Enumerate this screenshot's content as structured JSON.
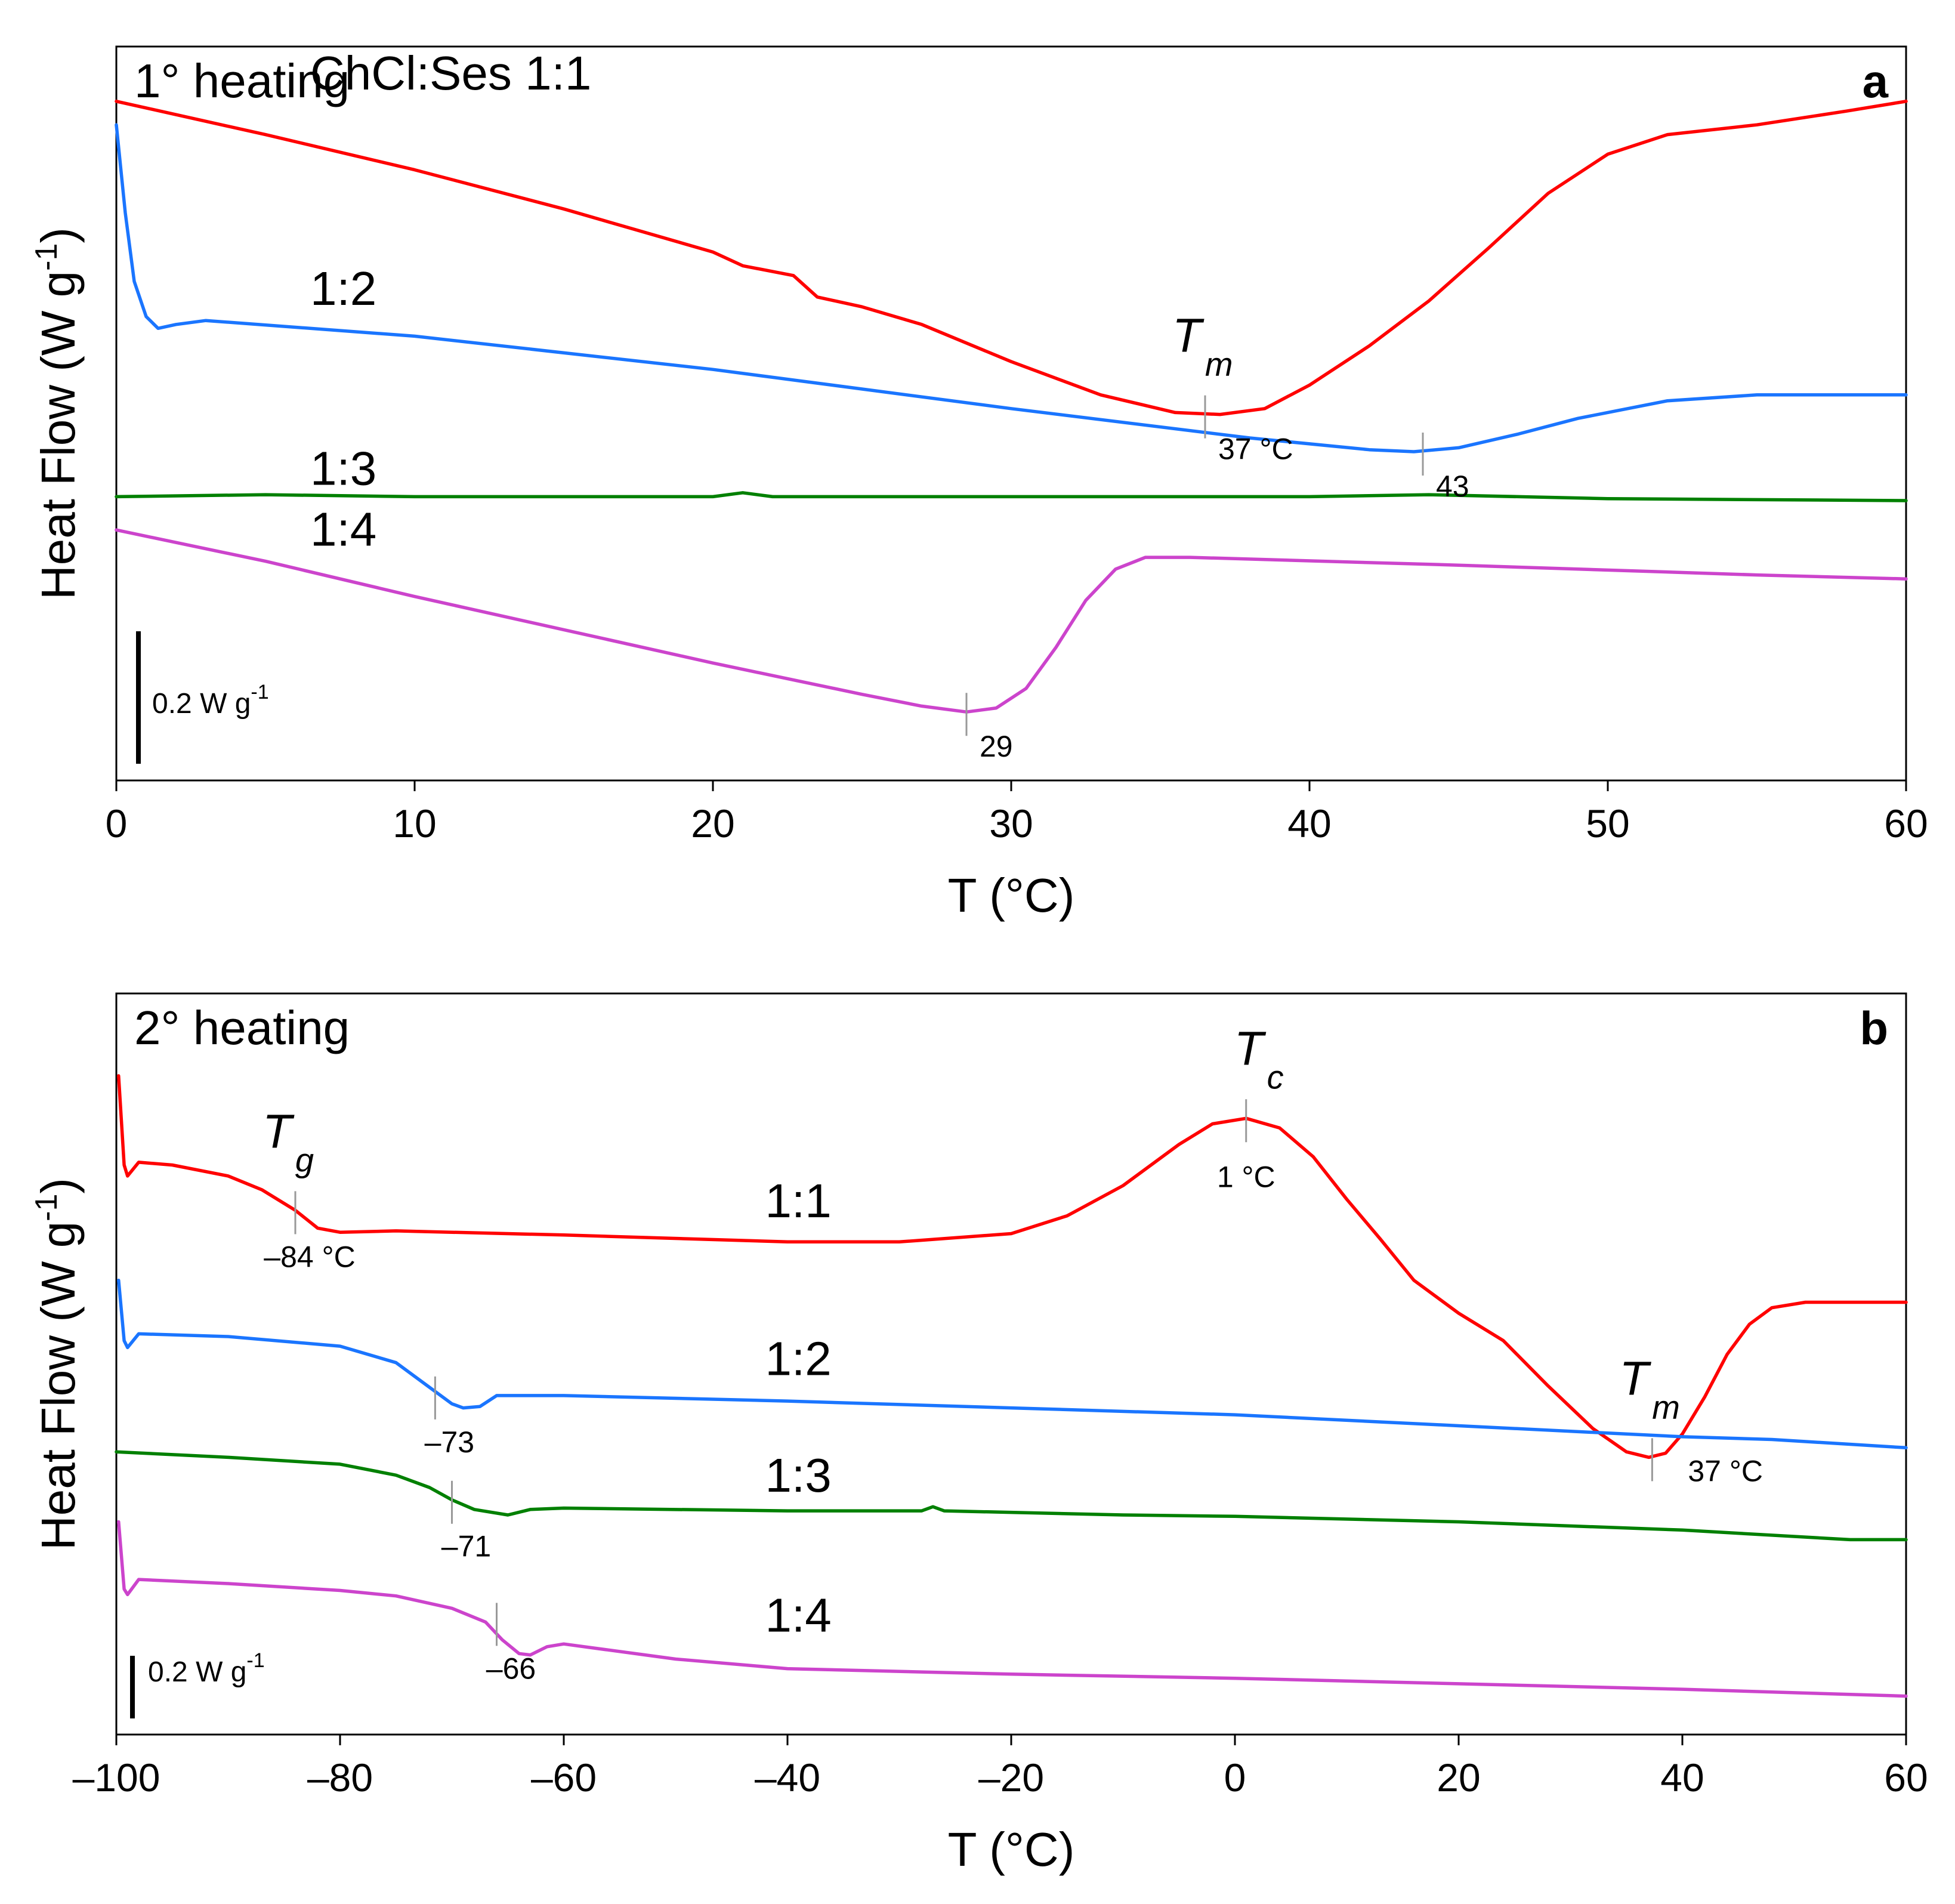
{
  "chart_data": [
    {
      "panel_letter": "a",
      "title": "1° heating",
      "type": "line",
      "xlabel": "T (°C)",
      "ylabel": "Heat Flow (W g",
      "ylabel_superscript": "-1",
      "ylabel_close": ")",
      "xlim": [
        0,
        60
      ],
      "xticks": [
        "0",
        "10",
        "20",
        "30",
        "40",
        "50",
        "60"
      ],
      "scale_bar": {
        "label": "0.2 W g",
        "superscript": "-1"
      },
      "series": [
        {
          "name": "ChCl:Ses 1:1",
          "color": "#ff0000",
          "points": [
            [
              0,
              3.17
            ],
            [
              5,
              3.0
            ],
            [
              10,
              2.82
            ],
            [
              15,
              2.62
            ],
            [
              20,
              2.4
            ],
            [
              21,
              2.33
            ],
            [
              22.7,
              2.28
            ],
            [
              23.5,
              2.17
            ],
            [
              25,
              2.12
            ],
            [
              27,
              2.03
            ],
            [
              30,
              1.84
            ],
            [
              33,
              1.67
            ],
            [
              35.5,
              1.58
            ],
            [
              37,
              1.57
            ],
            [
              38.5,
              1.6
            ],
            [
              40,
              1.72
            ],
            [
              42,
              1.92
            ],
            [
              44,
              2.15
            ],
            [
              46,
              2.42
            ],
            [
              48,
              2.7
            ],
            [
              50,
              2.9
            ],
            [
              52,
              3.0
            ],
            [
              55,
              3.05
            ],
            [
              58,
              3.12
            ],
            [
              60,
              3.17
            ]
          ]
        },
        {
          "name": "1:2",
          "color": "#1a75ff",
          "points": [
            [
              0,
              3.05
            ],
            [
              0.3,
              2.6
            ],
            [
              0.6,
              2.25
            ],
            [
              1.0,
              2.07
            ],
            [
              1.4,
              2.01
            ],
            [
              2,
              2.03
            ],
            [
              3,
              2.05
            ],
            [
              10,
              1.97
            ],
            [
              20,
              1.8
            ],
            [
              30,
              1.6
            ],
            [
              38,
              1.45
            ],
            [
              42,
              1.39
            ],
            [
              43.5,
              1.38
            ],
            [
              45,
              1.4
            ],
            [
              47,
              1.47
            ],
            [
              49,
              1.55
            ],
            [
              52,
              1.64
            ],
            [
              55,
              1.67
            ],
            [
              60,
              1.67
            ]
          ]
        },
        {
          "name": "1:3",
          "color": "#008000",
          "points": [
            [
              0,
              1.15
            ],
            [
              5,
              1.16
            ],
            [
              10,
              1.15
            ],
            [
              20,
              1.15
            ],
            [
              21,
              1.17
            ],
            [
              22,
              1.15
            ],
            [
              30,
              1.15
            ],
            [
              40,
              1.15
            ],
            [
              44,
              1.16
            ],
            [
              50,
              1.14
            ],
            [
              60,
              1.13
            ]
          ]
        },
        {
          "name": "1:4",
          "color": "#cc44cc",
          "points": [
            [
              0,
              0.98
            ],
            [
              5,
              0.82
            ],
            [
              10,
              0.64
            ],
            [
              15,
              0.47
            ],
            [
              20,
              0.3
            ],
            [
              25,
              0.14
            ],
            [
              27,
              0.08
            ],
            [
              28.5,
              0.05
            ],
            [
              29.5,
              0.07
            ],
            [
              30.5,
              0.17
            ],
            [
              31.5,
              0.38
            ],
            [
              32.5,
              0.62
            ],
            [
              33.5,
              0.78
            ],
            [
              34.5,
              0.84
            ],
            [
              36,
              0.84
            ],
            [
              45,
              0.8
            ],
            [
              55,
              0.75
            ],
            [
              60,
              0.73
            ]
          ]
        }
      ],
      "series_labels": [
        {
          "text": "ChCl:Ses 1:1",
          "x": 6.5,
          "y": 3.23
        },
        {
          "text": "1:2",
          "x": 6.5,
          "y": 2.13
        },
        {
          "text": "1:3",
          "x": 6.5,
          "y": 1.21
        },
        {
          "text": "1:4",
          "x": 6.5,
          "y": 0.9
        }
      ],
      "annotations": [
        {
          "kind": "Tm",
          "symbol": "T",
          "subscript": "m",
          "label": "37 °C",
          "x": 36.5,
          "y": 1.57
        },
        {
          "kind": "Tm",
          "label": "43",
          "x": 43.8,
          "y": 1.38
        },
        {
          "kind": "Tm",
          "label": "29",
          "x": 28.5,
          "y": 0.05
        }
      ]
    },
    {
      "panel_letter": "b",
      "title": "2° heating",
      "type": "line",
      "xlabel": "T (°C)",
      "ylabel": "Heat Flow (W g",
      "ylabel_superscript": "-1",
      "ylabel_close": ")",
      "xlim": [
        -100,
        60
      ],
      "xticks": [
        "–100",
        "–80",
        "–60",
        "–40",
        "–20",
        "0",
        "20",
        "40",
        "60"
      ],
      "scale_bar": {
        "label": "0.2 W g",
        "superscript": "-1"
      },
      "series": [
        {
          "name": "1:1",
          "color": "#ff0000",
          "points": [
            [
              -99.8,
              4.05
            ],
            [
              -99.3,
              3.4
            ],
            [
              -99,
              3.32
            ],
            [
              -98,
              3.42
            ],
            [
              -95,
              3.4
            ],
            [
              -90,
              3.32
            ],
            [
              -87,
              3.22
            ],
            [
              -84,
              3.07
            ],
            [
              -82,
              2.94
            ],
            [
              -80,
              2.91
            ],
            [
              -75,
              2.92
            ],
            [
              -60,
              2.89
            ],
            [
              -40,
              2.84
            ],
            [
              -30,
              2.84
            ],
            [
              -20,
              2.9
            ],
            [
              -15,
              3.03
            ],
            [
              -10,
              3.25
            ],
            [
              -5,
              3.55
            ],
            [
              -2,
              3.7
            ],
            [
              1,
              3.74
            ],
            [
              4,
              3.67
            ],
            [
              7,
              3.46
            ],
            [
              10,
              3.15
            ],
            [
              13,
              2.86
            ],
            [
              16,
              2.56
            ],
            [
              20,
              2.32
            ],
            [
              24,
              2.12
            ],
            [
              28,
              1.79
            ],
            [
              32,
              1.48
            ],
            [
              35,
              1.31
            ],
            [
              37,
              1.27
            ],
            [
              38.5,
              1.3
            ],
            [
              40,
              1.44
            ],
            [
              42,
              1.71
            ],
            [
              44,
              2.02
            ],
            [
              46,
              2.24
            ],
            [
              48,
              2.36
            ],
            [
              51,
              2.4
            ],
            [
              60,
              2.4
            ]
          ]
        },
        {
          "name": "1:2",
          "color": "#1a75ff",
          "points": [
            [
              -99.8,
              2.56
            ],
            [
              -99.3,
              2.12
            ],
            [
              -99,
              2.07
            ],
            [
              -98,
              2.17
            ],
            [
              -90,
              2.15
            ],
            [
              -80,
              2.08
            ],
            [
              -75,
              1.96
            ],
            [
              -72,
              1.78
            ],
            [
              -70,
              1.66
            ],
            [
              -69,
              1.63
            ],
            [
              -67.5,
              1.64
            ],
            [
              -66,
              1.72
            ],
            [
              -60,
              1.72
            ],
            [
              -40,
              1.68
            ],
            [
              -20,
              1.63
            ],
            [
              0,
              1.58
            ],
            [
              20,
              1.5
            ],
            [
              40,
              1.42
            ],
            [
              48,
              1.4
            ],
            [
              60,
              1.34
            ]
          ]
        },
        {
          "name": "1:3",
          "color": "#008000",
          "points": [
            [
              -100,
              1.31
            ],
            [
              -90,
              1.27
            ],
            [
              -80,
              1.22
            ],
            [
              -75,
              1.14
            ],
            [
              -72,
              1.05
            ],
            [
              -70,
              0.96
            ],
            [
              -68,
              0.89
            ],
            [
              -65,
              0.85
            ],
            [
              -63,
              0.89
            ],
            [
              -60,
              0.9
            ],
            [
              -40,
              0.88
            ],
            [
              -28,
              0.88
            ],
            [
              -27,
              0.91
            ],
            [
              -26,
              0.88
            ],
            [
              -10,
              0.85
            ],
            [
              0,
              0.84
            ],
            [
              20,
              0.8
            ],
            [
              40,
              0.74
            ],
            [
              55,
              0.67
            ],
            [
              60,
              0.67
            ]
          ]
        },
        {
          "name": "1:4",
          "color": "#cc44cc",
          "points": [
            [
              -99.8,
              0.8
            ],
            [
              -99.3,
              0.31
            ],
            [
              -99,
              0.27
            ],
            [
              -98,
              0.38
            ],
            [
              -90,
              0.35
            ],
            [
              -80,
              0.3
            ],
            [
              -75,
              0.26
            ],
            [
              -70,
              0.17
            ],
            [
              -67,
              0.07
            ],
            [
              -65.5,
              -0.06
            ],
            [
              -64,
              -0.16
            ],
            [
              -63,
              -0.17
            ],
            [
              -61.5,
              -0.11
            ],
            [
              -60,
              -0.09
            ],
            [
              -50,
              -0.2
            ],
            [
              -40,
              -0.27
            ],
            [
              -20,
              -0.31
            ],
            [
              0,
              -0.34
            ],
            [
              20,
              -0.38
            ],
            [
              40,
              -0.42
            ],
            [
              60,
              -0.47
            ]
          ]
        }
      ],
      "series_labels": [
        {
          "text": "1:1",
          "x": -42,
          "y": 3.02
        },
        {
          "text": "1:2",
          "x": -42,
          "y": 1.87
        },
        {
          "text": "1:3",
          "x": -42,
          "y": 1.02
        },
        {
          "text": "1:4",
          "x": -42,
          "y": 0.0
        }
      ],
      "annotations": [
        {
          "kind": "Tg",
          "symbol": "T",
          "subscript": "g",
          "label": "–84 °C",
          "x": -84,
          "y": 3.07
        },
        {
          "kind": "Tc",
          "symbol": "T",
          "subscript": "c",
          "label": "1 °C",
          "x": 1,
          "y": 3.74
        },
        {
          "kind": "Tm",
          "symbol": "T",
          "subscript": "m",
          "label": "37 °C",
          "x": 37.3,
          "y": 1.27
        },
        {
          "kind": "Tg",
          "label": "–73",
          "x": -71.5,
          "y": 1.72
        },
        {
          "kind": "Tg",
          "label": "–71",
          "x": -70,
          "y": 0.96
        },
        {
          "kind": "Tg",
          "label": "–66",
          "x": -66,
          "y": 0.07
        }
      ]
    }
  ]
}
